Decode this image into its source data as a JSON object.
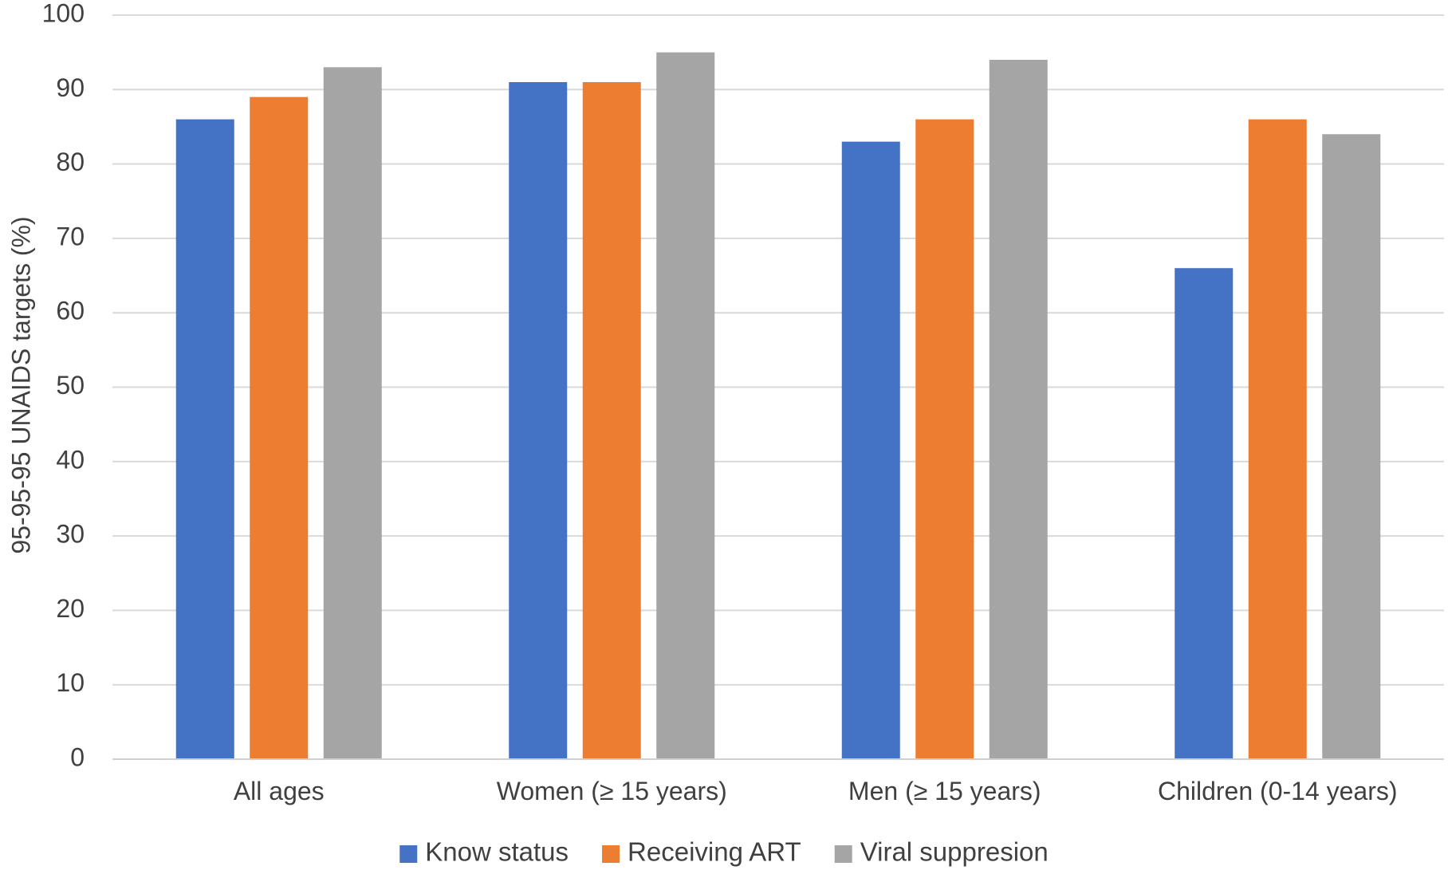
{
  "chart_data": {
    "type": "bar",
    "title": "",
    "xlabel": "",
    "ylabel": "95-95-95  UNAIDS targets (%)",
    "ylim": [
      0,
      100
    ],
    "yticks": [
      "0",
      "10",
      "20",
      "30",
      "40",
      "50",
      "60",
      "70",
      "80",
      "90",
      "100"
    ],
    "grid": true,
    "legend_position": "bottom",
    "categories": [
      "All ages",
      "Women (≥ 15 years)",
      "Men (≥ 15 years)",
      "Children (0-14 years)"
    ],
    "series": [
      {
        "name": "Know status",
        "color": "#4472C4",
        "values": [
          86,
          91,
          83,
          66
        ]
      },
      {
        "name": "Receiving ART",
        "color": "#ED7D31",
        "values": [
          89,
          91,
          86,
          86
        ]
      },
      {
        "name": "Viral suppresion",
        "color": "#A5A5A5",
        "values": [
          93,
          95,
          94,
          84
        ]
      }
    ]
  }
}
